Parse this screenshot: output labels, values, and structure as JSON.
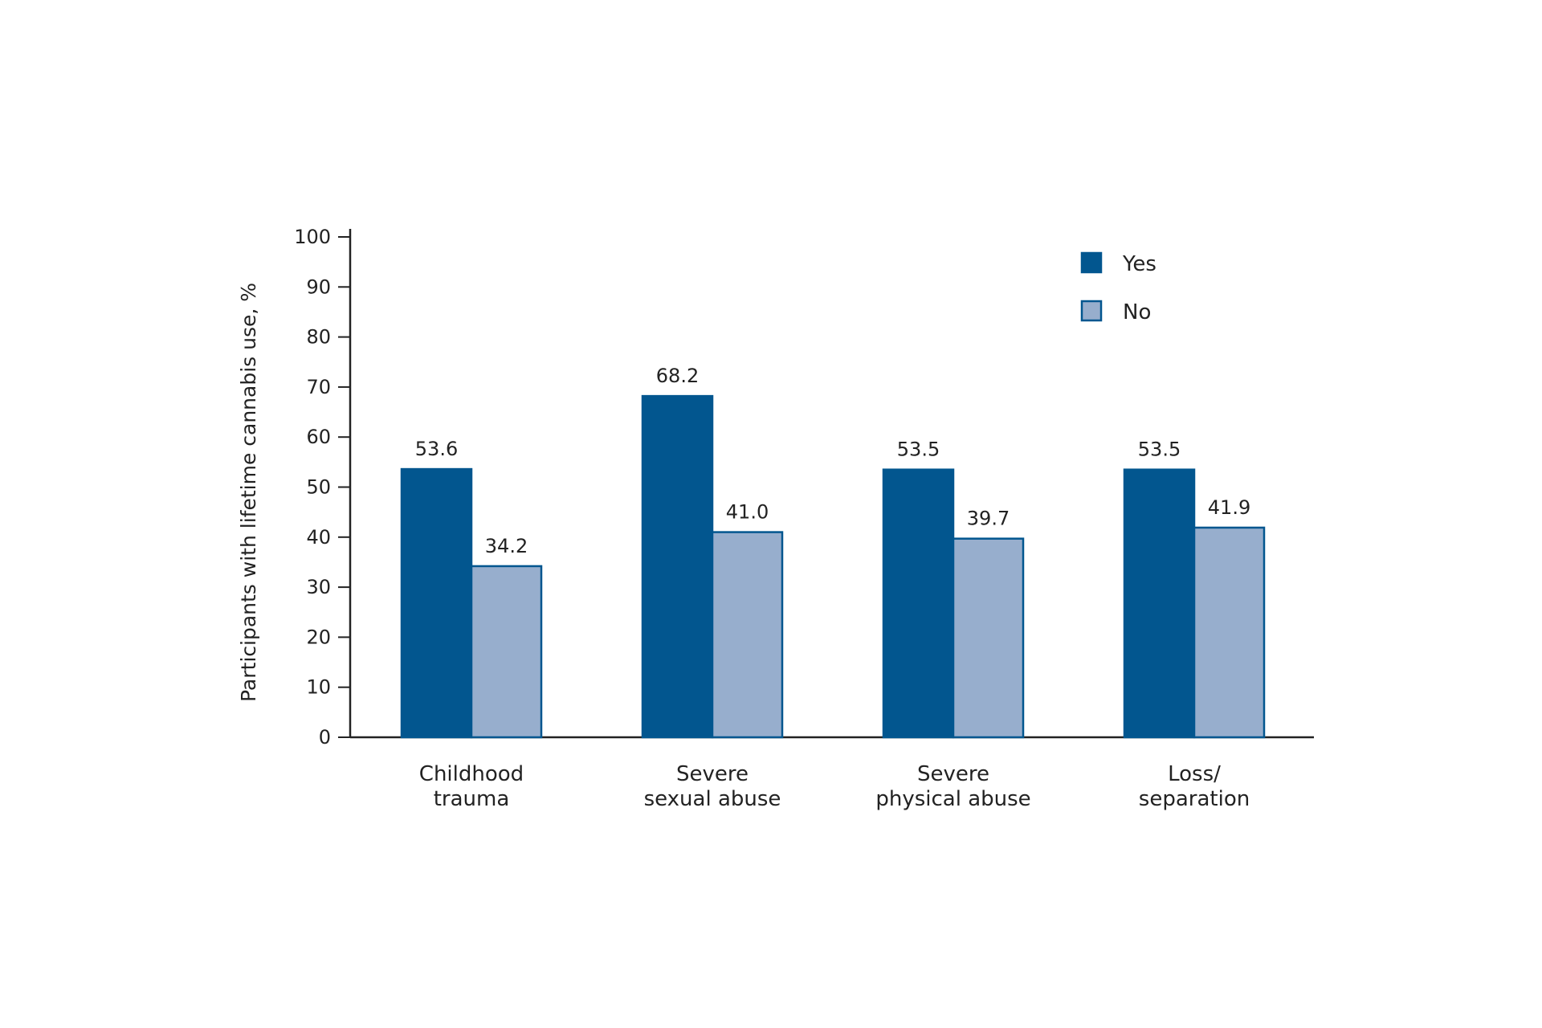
{
  "chart_data": {
    "type": "bar",
    "title": "",
    "xlabel": "",
    "ylabel": "Participants with lifetime cannabis use, %",
    "ylim": [
      0,
      100
    ],
    "yticks": [
      0,
      10,
      20,
      30,
      40,
      50,
      60,
      70,
      80,
      90,
      100
    ],
    "categories": [
      [
        "Childhood",
        "trauma"
      ],
      [
        "Severe",
        "sexual abuse"
      ],
      [
        "Severe",
        "physical abuse"
      ],
      [
        "Loss/",
        "separation"
      ]
    ],
    "series": [
      {
        "name": "Yes",
        "color": "#02568f",
        "values": [
          53.6,
          68.2,
          53.5,
          53.5
        ],
        "labels": [
          "53.6",
          "68.2",
          "53.5",
          "53.5"
        ]
      },
      {
        "name": "No",
        "color": "#97aecd",
        "values": [
          34.2,
          41.0,
          39.7,
          41.9
        ],
        "labels": [
          "34.2",
          "41.0",
          "39.7",
          "41.9"
        ]
      }
    ],
    "legend_position": "top-right",
    "grid": false
  }
}
